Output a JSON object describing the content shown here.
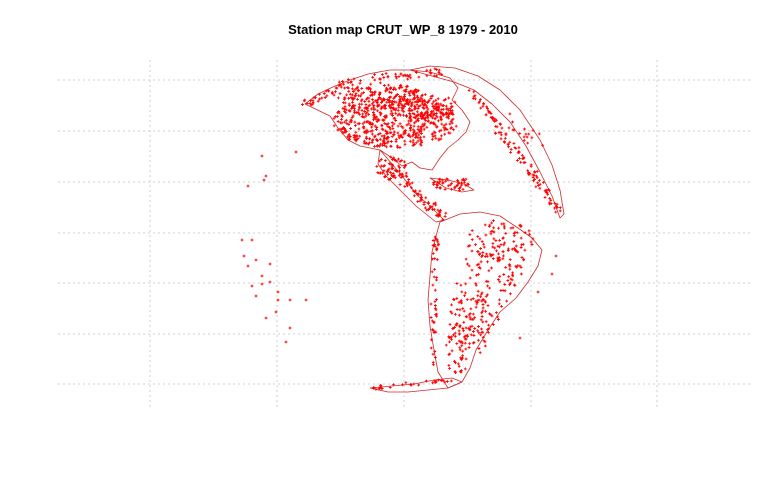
{
  "title": "Station map CRUT_WP_8 1979 - 2010",
  "colors": {
    "background": "#ffffff",
    "station_marker": "#ff0000",
    "coastline": "#cc2a2a",
    "grid": "#cfcfcf",
    "title": "#000000"
  },
  "map": {
    "projection": "orthographic",
    "grid": true,
    "grid_style": "dotted",
    "hemisphere_shown": "Americas",
    "station_marker_symbol": "plus"
  }
}
